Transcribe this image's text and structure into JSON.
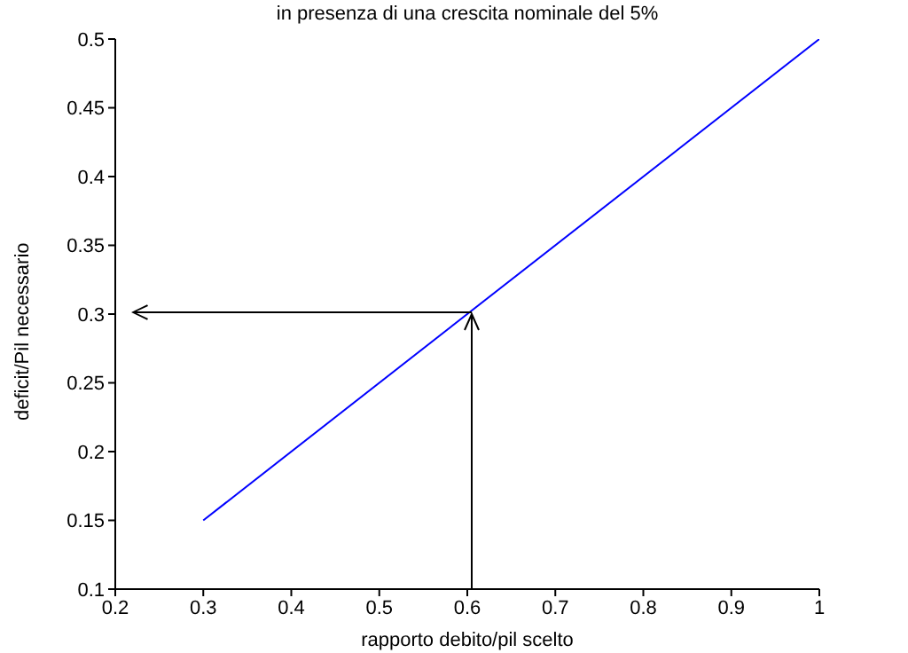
{
  "chart_data": {
    "type": "line",
    "title": "in presenza di una crescita nominale del 5%",
    "xlabel": "rapporto debito/pil scelto",
    "ylabel": "deficit/Pil necessario",
    "series": [
      {
        "color": "#0000ff",
        "x": [
          0.3,
          1
        ],
        "values": [
          0.15,
          0.5
        ]
      }
    ],
    "xlim": [
      0.2,
      1
    ],
    "xticks": [
      0.2,
      0.3,
      0.4,
      0.5,
      0.6,
      0.7,
      0.8,
      0.9,
      1
    ],
    "ylim": [
      0.1,
      0.5
    ],
    "yticks": [
      0.1,
      0.15,
      0.2,
      0.25,
      0.3,
      0.35,
      0.4,
      0.45,
      0.5
    ],
    "grid": false,
    "legend": false,
    "marker": "none",
    "line_style": "solid"
  }
}
